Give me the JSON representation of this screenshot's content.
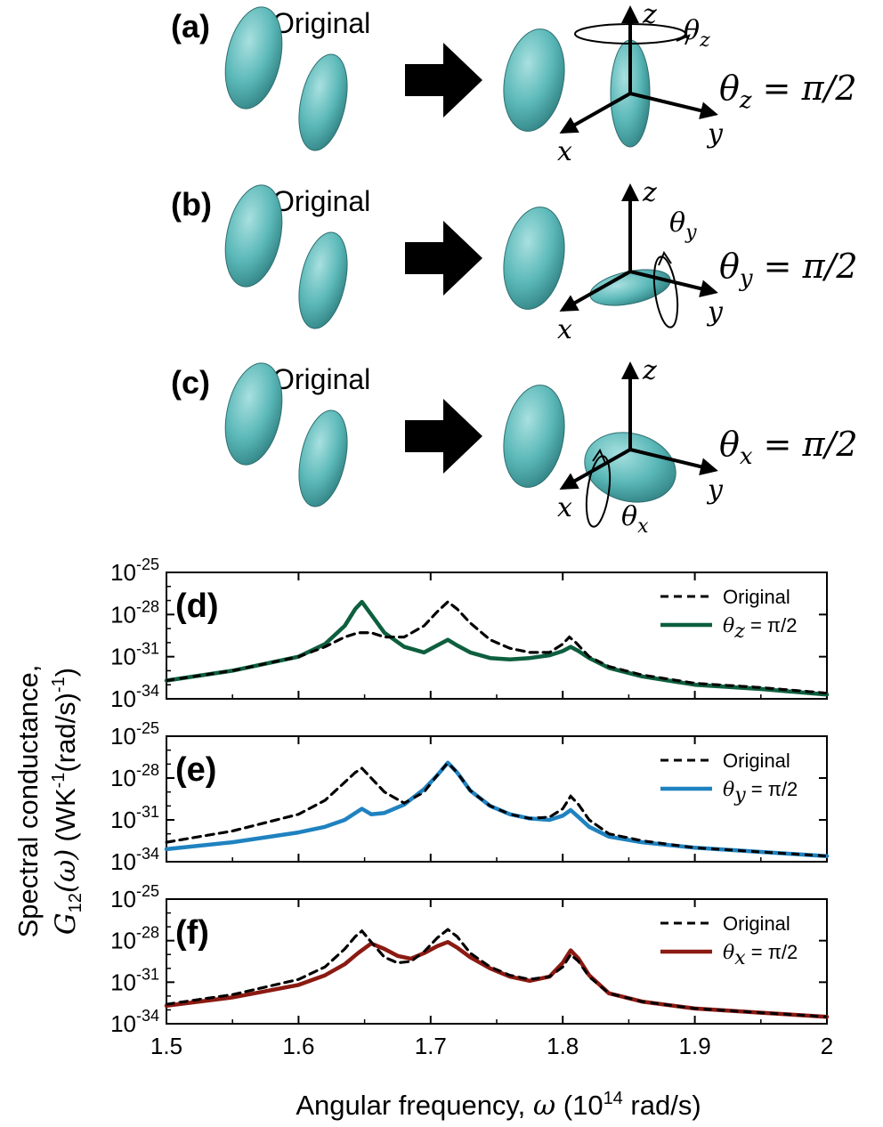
{
  "illustration": {
    "ellipsoid_color": "#5bb8b8",
    "panels": [
      {
        "letter": "(a)",
        "original_label": "Original",
        "rot_axis": "z",
        "result_lhs": "θz",
        "result_rhs": " = π/2"
      },
      {
        "letter": "(b)",
        "original_label": "Original",
        "rot_axis": "y",
        "result_lhs": "θy",
        "result_rhs": " = π/2"
      },
      {
        "letter": "(c)",
        "original_label": "Original",
        "rot_axis": "x",
        "result_lhs": "θx",
        "result_rhs": " = π/2"
      }
    ],
    "axis_labels": {
      "x": "x",
      "y": "y",
      "z": "z"
    },
    "theta_symbol": "θ"
  },
  "chart_data": [
    {
      "type": "line",
      "panel_letter": "(d)",
      "ylabel": "Spectral conductance, G12(ω) (WK-1(rad/s)-1)",
      "xlabel": "Angular frequency, ω (10^14 rad/s)",
      "yscale": "log",
      "ylim": [
        -34,
        -25
      ],
      "xlim": [
        1.5,
        2.0
      ],
      "series": [
        {
          "name": "Original",
          "style": "dashed",
          "color": "#000000",
          "x": [
            1.5,
            1.55,
            1.6,
            1.62,
            1.635,
            1.645,
            1.655,
            1.665,
            1.68,
            1.695,
            1.705,
            1.713,
            1.72,
            1.73,
            1.745,
            1.76,
            1.775,
            1.79,
            1.8,
            1.805,
            1.81,
            1.82,
            1.835,
            1.86,
            1.9,
            1.95,
            2.0
          ],
          "y": [
            -32.7,
            -32.0,
            -31.0,
            -30.3,
            -29.6,
            -29.3,
            -29.3,
            -29.6,
            -29.6,
            -28.8,
            -27.8,
            -27.1,
            -27.6,
            -28.6,
            -29.8,
            -30.4,
            -30.7,
            -30.7,
            -30.1,
            -29.6,
            -30.0,
            -31.0,
            -31.7,
            -32.3,
            -32.9,
            -33.2,
            -33.6
          ]
        },
        {
          "name": "θz = π/2",
          "style": "solid",
          "color": "#0d5f3e",
          "x": [
            1.5,
            1.55,
            1.6,
            1.62,
            1.635,
            1.643,
            1.648,
            1.655,
            1.665,
            1.68,
            1.695,
            1.705,
            1.713,
            1.72,
            1.73,
            1.745,
            1.76,
            1.775,
            1.79,
            1.8,
            1.806,
            1.812,
            1.82,
            1.835,
            1.86,
            1.9,
            1.95,
            2.0
          ],
          "y": [
            -32.7,
            -32.0,
            -31.0,
            -30.1,
            -28.8,
            -27.6,
            -27.1,
            -28.0,
            -29.3,
            -30.3,
            -30.7,
            -30.2,
            -29.8,
            -30.2,
            -30.7,
            -31.1,
            -31.2,
            -31.1,
            -30.9,
            -30.6,
            -30.3,
            -30.6,
            -31.1,
            -31.8,
            -32.4,
            -33.0,
            -33.3,
            -33.7
          ]
        }
      ]
    },
    {
      "type": "line",
      "panel_letter": "(e)",
      "yscale": "log",
      "ylim": [
        -34,
        -25
      ],
      "xlim": [
        1.5,
        2.0
      ],
      "series": [
        {
          "name": "Original",
          "style": "dashed",
          "color": "#000000",
          "x": [
            1.5,
            1.55,
            1.6,
            1.62,
            1.635,
            1.643,
            1.648,
            1.655,
            1.665,
            1.68,
            1.695,
            1.705,
            1.713,
            1.72,
            1.73,
            1.745,
            1.76,
            1.775,
            1.79,
            1.8,
            1.806,
            1.812,
            1.82,
            1.835,
            1.86,
            1.9,
            1.95,
            2.0
          ],
          "y": [
            -32.6,
            -31.8,
            -30.6,
            -29.6,
            -28.3,
            -27.6,
            -27.3,
            -28.0,
            -29.0,
            -29.8,
            -29.0,
            -27.8,
            -26.9,
            -27.6,
            -28.9,
            -30.0,
            -30.6,
            -30.9,
            -30.8,
            -30.2,
            -29.3,
            -29.9,
            -31.0,
            -32.0,
            -32.5,
            -33.0,
            -33.3,
            -33.6
          ]
        },
        {
          "name": "θy = π/2",
          "style": "solid",
          "color": "#1f82c0",
          "x": [
            1.5,
            1.55,
            1.6,
            1.62,
            1.635,
            1.643,
            1.648,
            1.655,
            1.665,
            1.68,
            1.695,
            1.705,
            1.713,
            1.72,
            1.73,
            1.745,
            1.76,
            1.775,
            1.79,
            1.8,
            1.806,
            1.812,
            1.82,
            1.835,
            1.86,
            1.9,
            1.95,
            2.0
          ],
          "y": [
            -33.1,
            -32.6,
            -31.9,
            -31.5,
            -31.0,
            -30.5,
            -30.2,
            -30.6,
            -30.5,
            -29.9,
            -28.8,
            -27.8,
            -26.9,
            -27.6,
            -28.9,
            -30.0,
            -30.6,
            -30.9,
            -31.0,
            -30.7,
            -30.3,
            -30.8,
            -31.5,
            -32.2,
            -32.6,
            -33.0,
            -33.3,
            -33.6
          ]
        }
      ]
    },
    {
      "type": "line",
      "panel_letter": "(f)",
      "yscale": "log",
      "ylim": [
        -34,
        -25
      ],
      "xlim": [
        1.5,
        2.0
      ],
      "series": [
        {
          "name": "Original",
          "style": "dashed",
          "color": "#000000",
          "x": [
            1.5,
            1.55,
            1.6,
            1.62,
            1.635,
            1.643,
            1.648,
            1.655,
            1.665,
            1.675,
            1.685,
            1.695,
            1.705,
            1.713,
            1.72,
            1.73,
            1.745,
            1.76,
            1.775,
            1.79,
            1.8,
            1.806,
            1.812,
            1.82,
            1.835,
            1.86,
            1.9,
            1.95,
            2.0
          ],
          "y": [
            -32.6,
            -31.9,
            -30.8,
            -29.9,
            -28.6,
            -27.7,
            -27.3,
            -28.1,
            -29.2,
            -29.6,
            -29.5,
            -28.8,
            -27.8,
            -27.2,
            -27.7,
            -28.9,
            -29.9,
            -30.5,
            -30.8,
            -30.6,
            -29.9,
            -29.0,
            -29.5,
            -30.6,
            -31.8,
            -32.4,
            -32.9,
            -33.2,
            -33.5
          ]
        },
        {
          "name": "θx = π/2",
          "style": "solid",
          "color": "#8b1a12",
          "x": [
            1.5,
            1.55,
            1.6,
            1.62,
            1.635,
            1.645,
            1.655,
            1.665,
            1.675,
            1.685,
            1.695,
            1.705,
            1.713,
            1.72,
            1.73,
            1.745,
            1.76,
            1.775,
            1.79,
            1.8,
            1.806,
            1.812,
            1.82,
            1.835,
            1.86,
            1.9,
            1.95,
            2.0
          ],
          "y": [
            -32.7,
            -32.1,
            -31.2,
            -30.5,
            -29.7,
            -28.9,
            -28.2,
            -28.6,
            -29.1,
            -29.3,
            -28.9,
            -28.4,
            -28.1,
            -28.5,
            -29.2,
            -30.0,
            -30.6,
            -30.9,
            -30.6,
            -29.6,
            -28.7,
            -29.3,
            -30.5,
            -31.8,
            -32.4,
            -32.9,
            -33.2,
            -33.5
          ]
        }
      ]
    }
  ],
  "axes": {
    "y_tick_base": "10",
    "y_tick_exponents": [
      "-25",
      "-28",
      "-31",
      "-34"
    ],
    "x_ticks": [
      "1.5",
      "1.6",
      "1.7",
      "1.8",
      "1.9",
      "2"
    ],
    "ylabel_line1": "Spectral conductance,",
    "ylabel_line2_G": "G",
    "ylabel_line2_sub": "12",
    "ylabel_line2_omega": "(ω)",
    "ylabel_line2_units": "(WK",
    "ylabel_line2_sup1": "-1",
    "ylabel_line2_mid": "(rad/s)",
    "ylabel_line2_sup2": "-1",
    "ylabel_line2_close": ")",
    "xlabel_prefix": "Angular frequency, ",
    "xlabel_omega": "ω",
    "xlabel_units_a": " (10",
    "xlabel_sup": "14",
    "xlabel_units_b": " rad/s)"
  },
  "legend_labels": {
    "original": "Original",
    "theta": "θ",
    "subs": [
      "z",
      "y",
      "x"
    ],
    "eq": " = π/2"
  }
}
